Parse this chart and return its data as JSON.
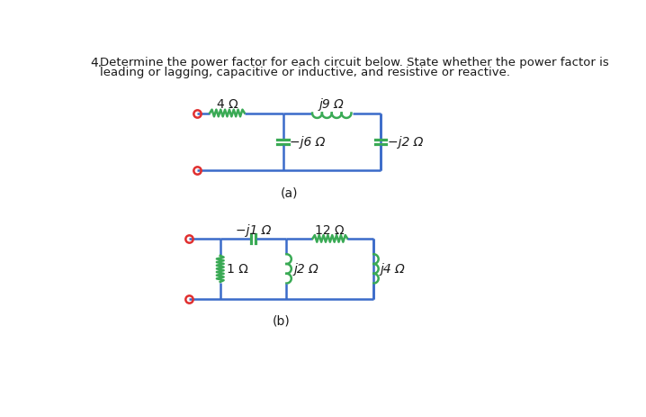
{
  "title_number": "4.",
  "title_line1": "Determine the power factor for each circuit below. State whether the power factor is",
  "title_line2": "leading or lagging, capacitive or inductive, and resistive or reactive.",
  "label_a": "(a)",
  "label_b": "(b)",
  "wire_color": "#3a6bc9",
  "inductor_color": "#3aaa55",
  "resistor_color": "#3aaa55",
  "capacitor_color": "#3aaa55",
  "terminal_color": "#e03030",
  "text_color": "#1a1a1a",
  "label_color": "#2255cc",
  "background_color": "#ffffff",
  "circuit_a": {
    "R_label": "4 Ω",
    "L_label": "j9 Ω",
    "C1_label": "−j6 Ω",
    "C2_label": "−j2 Ω"
  },
  "circuit_b": {
    "C_label": "−j1 Ω",
    "R_label": "12 Ω",
    "R1_label": "1 Ω",
    "L1_label": "j2 Ω",
    "L2_label": "j4 Ω"
  }
}
